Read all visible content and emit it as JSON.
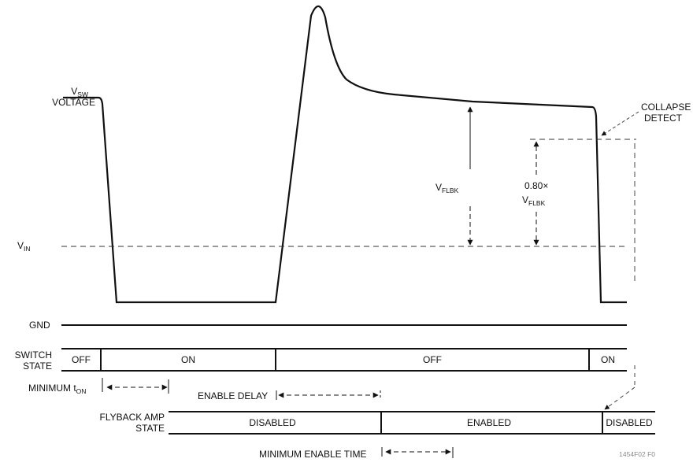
{
  "labels": {
    "vsw_main": "V",
    "vsw_sub": "SW",
    "voltage": "VOLTAGE",
    "vin_main": "V",
    "vin_sub": "IN",
    "gnd": "GND",
    "switch": "SWITCH",
    "state": "STATE",
    "flyback_amp": "FLYBACK AMP",
    "flyback_state": "STATE",
    "collapse": "COLLAPSE",
    "detect": "DETECT",
    "vflbk_main": "V",
    "vflbk_sub": "FLBK",
    "ratio": "0.80×",
    "ratio_v_main": "V",
    "ratio_v_sub": "FLBK",
    "min_ton_main": "MINIMUM t",
    "min_ton_sub": "ON",
    "enable_delay": "ENABLE DELAY",
    "min_enable_time": "MINIMUM ENABLE TIME",
    "figure_id": "1454F02 F0"
  },
  "switch_states": [
    "OFF",
    "ON",
    "OFF",
    "ON"
  ],
  "amp_states": [
    "DISABLED",
    "ENABLED",
    "DISABLED"
  ],
  "colors": {
    "ink": "#111111",
    "background": "#ffffff"
  }
}
